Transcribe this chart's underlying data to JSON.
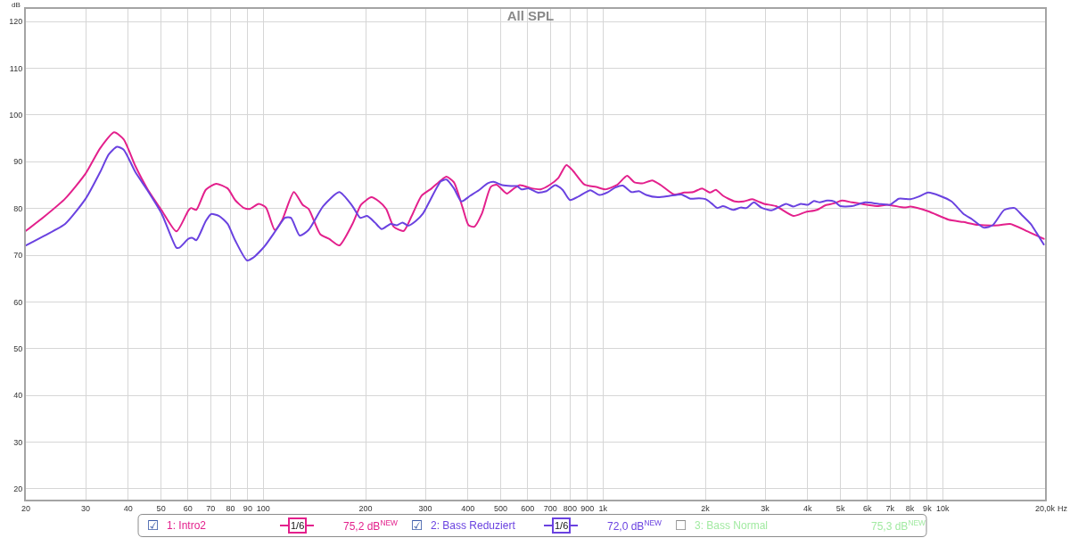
{
  "chart_data": {
    "type": "line",
    "title": "All SPL",
    "xlabel": "Hz",
    "ylabel": "dB",
    "log": "x",
    "grid": true,
    "legend": "bottom",
    "line_style": "solid",
    "xlim": [
      20,
      20000
    ],
    "ylim": [
      17.7,
      122.7
    ],
    "xticks": [
      20,
      30,
      40,
      50,
      60,
      70,
      80,
      90,
      100,
      200,
      300,
      400,
      500,
      600,
      700,
      800,
      900,
      {
        "value": 1000,
        "label": "1k"
      },
      {
        "value": 2000,
        "label": "2k"
      },
      {
        "value": 3000,
        "label": "3k"
      },
      {
        "value": 4000,
        "label": "4k"
      },
      {
        "value": 5000,
        "label": "5k"
      },
      {
        "value": 6000,
        "label": "6k"
      },
      {
        "value": 7000,
        "label": "7k"
      },
      {
        "value": 8000,
        "label": "8k"
      },
      {
        "value": 9000,
        "label": "9k"
      },
      {
        "value": 10000,
        "label": "10k"
      },
      {
        "value": 20000,
        "label": "20,0k"
      }
    ],
    "yticks": [
      20,
      30,
      40,
      50,
      60,
      70,
      80,
      90,
      100,
      110,
      120
    ],
    "annotations": [
      "☑",
      "1/6",
      "75,2 dB$^{NEW}$",
      "☑",
      "1/6",
      "72,0 dB$^{NEW}$",
      "☐",
      "3: Bass Normal",
      "75,3 dB$^{NEW}$"
    ],
    "series": [
      {
        "name": "1: Intro2",
        "color": "#e3208c",
        "x": [
          20,
          22.7,
          26.1,
          30.0,
          33.1,
          36.4,
          38.8,
          42.0,
          45.5,
          50.2,
          55.5,
          60.2,
          61.3,
          63.5,
          67.7,
          72.6,
          78.5,
          82.6,
          87.7,
          91.3,
          96.9,
          101.8,
          108.1,
          113.6,
          123.0,
          130.5,
          135.9,
          147.1,
          156.1,
          167.4,
          183,
          194,
          208,
          219,
          230,
          242,
          259,
          273,
          292,
          313,
          333,
          346,
          364,
          386,
          402,
          418,
          440,
          467,
          486,
          521,
          547,
          569,
          617,
          655,
          695,
          738,
          780,
          815,
          882,
          955,
          1014,
          1098,
          1177,
          1237,
          1313,
          1394,
          1480,
          1619,
          1735,
          1842,
          1956,
          2064,
          2148,
          2257,
          2443,
          2594,
          2752,
          2863,
          2979,
          3227,
          3634,
          3934,
          4260,
          4520,
          4798,
          5043,
          5405,
          5969,
          6461,
          6859,
          7726,
          8038,
          9056,
          10405,
          11490,
          12690,
          14580,
          15785,
          17780,
          19830
        ],
        "values": [
          75.2,
          78.3,
          82.1,
          87.5,
          92.9,
          96.3,
          94.8,
          89.1,
          84.3,
          79.6,
          75.1,
          79.6,
          80.1,
          79.7,
          84.0,
          85.3,
          84.3,
          81.8,
          80.1,
          79.9,
          81.0,
          80.2,
          75.4,
          77.5,
          83.5,
          80.8,
          79.9,
          74.5,
          73.5,
          72.1,
          76.7,
          80.8,
          82.4,
          81.5,
          79.9,
          76.1,
          75.2,
          78.3,
          82.7,
          84.3,
          86.0,
          86.8,
          85.6,
          80.2,
          76.4,
          76.1,
          78.9,
          84.6,
          85.1,
          83.2,
          84.3,
          85.0,
          84.3,
          84.1,
          85.0,
          86.5,
          89.3,
          88.1,
          85.1,
          84.6,
          84.1,
          85.0,
          87.0,
          85.6,
          85.4,
          86.0,
          85.0,
          83.0,
          83.4,
          83.5,
          84.3,
          83.4,
          84.0,
          82.7,
          81.5,
          81.5,
          82.0,
          81.5,
          81.0,
          80.5,
          78.4,
          79.2,
          79.7,
          80.7,
          81.1,
          81.7,
          81.3,
          80.8,
          80.5,
          80.8,
          80.2,
          80.4,
          79.4,
          77.6,
          77.1,
          76.5,
          76.4,
          76.7,
          75.1,
          73.5
        ]
      },
      {
        "name": "2: Bass Reduziert",
        "color": "#6a42e0",
        "x": [
          20,
          22.7,
          26.1,
          30.0,
          33.1,
          35.1,
          37.1,
          38.8,
          42.0,
          45.5,
          50.2,
          55.5,
          56.6,
          60.2,
          61.9,
          63.5,
          67.7,
          70.2,
          74.1,
          78.5,
          82.6,
          89.5,
          93.1,
          100.8,
          109.1,
          115.8,
          120.6,
          128.0,
          135.9,
          150.0,
          167.4,
          183,
          193,
          202,
          213,
          223,
          237,
          247,
          257,
          267,
          281,
          295,
          310,
          333,
          346,
          364,
          383,
          406,
          431,
          458,
          476,
          505,
          536,
          558,
          575,
          604,
          642,
          681,
          723,
          760,
          799,
          848,
          918,
          975,
          1034,
          1087,
          1143,
          1213,
          1275,
          1340,
          1451,
          1571,
          1701,
          1806,
          1917,
          2003,
          2085,
          2168,
          2257,
          2418,
          2542,
          2645,
          2780,
          2921,
          3131,
          3291,
          3457,
          3634,
          3818,
          4013,
          4175,
          4344,
          4566,
          4798,
          4993,
          5405,
          5909,
          6461,
          6996,
          7424,
          8038,
          8531,
          9056,
          9803,
          10614,
          11490,
          12195,
          13206,
          14017,
          15174,
          16263,
          17095,
          18141,
          18874,
          19830
        ],
        "values": [
          72.1,
          74.2,
          76.7,
          82.1,
          87.8,
          91.6,
          93.2,
          92.6,
          87.8,
          84.0,
          78.9,
          71.6,
          71.6,
          73.5,
          73.7,
          73.2,
          77.3,
          78.8,
          78.4,
          76.7,
          73.2,
          68.9,
          69.4,
          71.9,
          75.4,
          78.0,
          78.0,
          74.2,
          75.4,
          80.5,
          83.5,
          80.5,
          78.0,
          78.4,
          77.0,
          75.6,
          76.7,
          76.4,
          77.0,
          76.3,
          77.3,
          78.9,
          81.8,
          85.8,
          86.2,
          84.3,
          81.5,
          82.7,
          83.9,
          85.4,
          85.7,
          85.0,
          84.8,
          84.8,
          84.1,
          84.3,
          83.4,
          83.7,
          85.0,
          84.0,
          81.8,
          82.6,
          83.9,
          82.9,
          83.5,
          84.5,
          84.9,
          83.5,
          83.7,
          82.9,
          82.4,
          82.7,
          83.0,
          82.1,
          82.2,
          82.0,
          81.1,
          80.1,
          80.5,
          79.7,
          80.2,
          80.1,
          81.3,
          80.2,
          79.6,
          80.3,
          81.0,
          80.4,
          81.0,
          80.8,
          81.6,
          81.3,
          81.7,
          81.5,
          80.5,
          80.5,
          81.3,
          81.0,
          80.8,
          82.1,
          82.0,
          82.6,
          83.4,
          82.7,
          81.5,
          78.9,
          77.7,
          75.9,
          76.4,
          79.7,
          80.1,
          78.6,
          76.7,
          74.8,
          72.3
        ]
      }
    ]
  }
}
